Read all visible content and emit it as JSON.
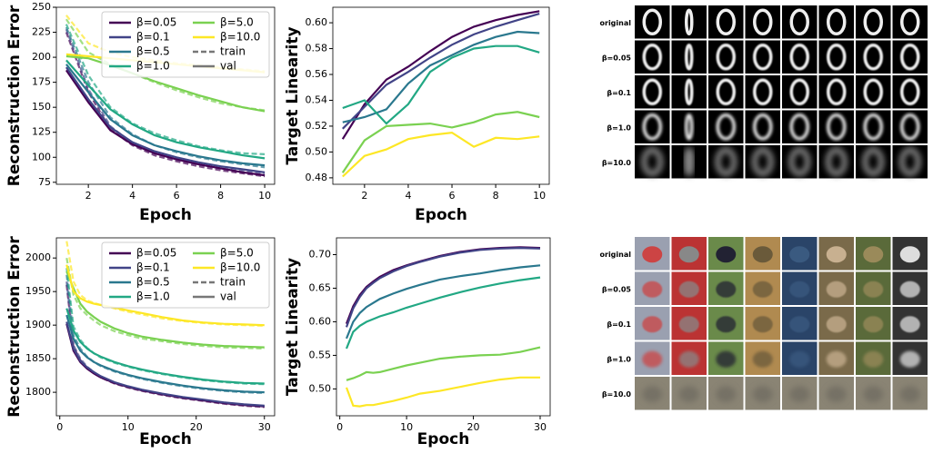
{
  "chart_data": [
    {
      "type": "line",
      "xlabel": "Epoch",
      "ylabel": "Reconstruction Error",
      "x": [
        1,
        2,
        3,
        4,
        5,
        6,
        7,
        8,
        9,
        10
      ],
      "xlim": [
        0.55,
        10.45
      ],
      "xticks": [
        2,
        4,
        6,
        8,
        10
      ],
      "ylim": [
        73,
        250
      ],
      "yticks": [
        75,
        100,
        125,
        150,
        175,
        200,
        225,
        250
      ],
      "legend": "upper right",
      "legend_styles": [
        "train",
        "val"
      ],
      "series": [
        {
          "name": "β=0.05",
          "color": "#440154",
          "values": [
            187,
            155,
            127,
            113,
            104,
            98,
            93,
            89,
            85,
            82
          ],
          "train_values": [
            225,
            165,
            128,
            112,
            102,
            96,
            91,
            87,
            84,
            81
          ]
        },
        {
          "name": "β=0.1",
          "color": "#414487",
          "values": [
            190,
            158,
            130,
            115,
            106,
            100,
            95,
            91,
            88,
            85
          ],
          "train_values": [
            228,
            168,
            131,
            114,
            104,
            98,
            93,
            89,
            86,
            84
          ]
        },
        {
          "name": "β=0.5",
          "color": "#2a788e",
          "values": [
            193,
            165,
            138,
            122,
            112,
            106,
            101,
            97,
            94,
            92
          ],
          "train_values": [
            230,
            175,
            140,
            123,
            112,
            105,
            100,
            96,
            93,
            90
          ]
        },
        {
          "name": "β=1.0",
          "color": "#22a884",
          "values": [
            197,
            172,
            148,
            133,
            122,
            115,
            110,
            106,
            102,
            99
          ],
          "train_values": [
            233,
            182,
            150,
            134,
            124,
            117,
            111,
            107,
            104,
            103
          ]
        },
        {
          "name": "β=5.0",
          "color": "#7ad151",
          "values": [
            201,
            199,
            192,
            184,
            176,
            169,
            162,
            156,
            150,
            146
          ],
          "train_values": [
            238,
            205,
            193,
            184,
            175,
            167,
            160,
            154,
            150,
            147
          ]
        },
        {
          "name": "β=10.0",
          "color": "#fde725",
          "values": [
            203,
            201,
            199,
            197,
            195,
            193,
            191,
            189,
            187,
            185
          ],
          "train_values": [
            242,
            214,
            205,
            200,
            197,
            194,
            192,
            190,
            188,
            186
          ]
        }
      ]
    },
    {
      "type": "line",
      "xlabel": "Epoch",
      "ylabel": "Target Linearity",
      "x": [
        1,
        2,
        3,
        4,
        5,
        6,
        7,
        8,
        9,
        10
      ],
      "xlim": [
        0.55,
        10.45
      ],
      "xticks": [
        2,
        4,
        6,
        8,
        10
      ],
      "ylim": [
        0.475,
        0.612
      ],
      "yticks": [
        0.48,
        {
          "value": 0.5,
          "label": "0.50"
        },
        0.52,
        0.54,
        0.56,
        0.58,
        {
          "value": 0.6,
          "label": "0.60"
        }
      ],
      "series": [
        {
          "name": "β=0.05",
          "color": "#440154",
          "values": [
            0.51,
            0.537,
            0.556,
            0.566,
            0.578,
            0.589,
            0.597,
            0.602,
            0.606,
            0.609
          ]
        },
        {
          "name": "β=0.1",
          "color": "#414487",
          "values": [
            0.518,
            0.535,
            0.552,
            0.562,
            0.573,
            0.583,
            0.591,
            0.597,
            0.602,
            0.607
          ]
        },
        {
          "name": "β=0.5",
          "color": "#2a788e",
          "values": [
            0.523,
            0.527,
            0.533,
            0.553,
            0.567,
            0.575,
            0.583,
            0.589,
            0.593,
            0.592
          ]
        },
        {
          "name": "β=1.0",
          "color": "#22a884",
          "values": [
            0.534,
            0.54,
            0.522,
            0.537,
            0.562,
            0.573,
            0.58,
            0.582,
            0.582,
            0.577
          ]
        },
        {
          "name": "β=5.0",
          "color": "#7ad151",
          "values": [
            0.484,
            0.509,
            0.52,
            0.521,
            0.522,
            0.519,
            0.523,
            0.529,
            0.531,
            0.527
          ]
        },
        {
          "name": "β=10.0",
          "color": "#fde725",
          "values": [
            0.481,
            0.497,
            0.502,
            0.51,
            0.513,
            0.515,
            0.504,
            0.511,
            0.51,
            0.512
          ]
        }
      ]
    },
    {
      "type": "line",
      "xlabel": "Epoch",
      "ylabel": "Reconstruction Error",
      "x": [
        1,
        2,
        3,
        4,
        5,
        6,
        8,
        10,
        12,
        15,
        18,
        21,
        24,
        27,
        30
      ],
      "xlim": [
        -0.5,
        31.5
      ],
      "xticks": [
        0,
        10,
        20,
        30
      ],
      "ylim": [
        1765,
        2030
      ],
      "yticks": [
        1800,
        1850,
        1900,
        1950,
        2000
      ],
      "legend": "upper right",
      "legend_styles": [
        "train",
        "val"
      ],
      "series": [
        {
          "name": "β=0.05",
          "color": "#440154",
          "values": [
            1902,
            1862,
            1845,
            1835,
            1828,
            1822,
            1814,
            1808,
            1803,
            1797,
            1792,
            1788,
            1784,
            1781,
            1779
          ],
          "train_values": [
            1960,
            1868,
            1848,
            1836,
            1828,
            1822,
            1813,
            1807,
            1802,
            1796,
            1791,
            1787,
            1783,
            1780,
            1778
          ]
        },
        {
          "name": "β=0.1",
          "color": "#414487",
          "values": [
            1905,
            1865,
            1847,
            1837,
            1830,
            1824,
            1815,
            1809,
            1804,
            1798,
            1793,
            1789,
            1785,
            1782,
            1780
          ],
          "train_values": [
            1965,
            1870,
            1850,
            1838,
            1830,
            1823,
            1814,
            1808,
            1803,
            1797,
            1792,
            1788,
            1784,
            1781,
            1779
          ]
        },
        {
          "name": "β=0.5",
          "color": "#2a788e",
          "values": [
            1915,
            1880,
            1862,
            1852,
            1845,
            1840,
            1832,
            1826,
            1821,
            1815,
            1810,
            1806,
            1803,
            1801,
            1800
          ],
          "train_values": [
            1975,
            1885,
            1865,
            1853,
            1845,
            1839,
            1831,
            1825,
            1820,
            1814,
            1809,
            1805,
            1802,
            1800,
            1799
          ]
        },
        {
          "name": "β=1.0",
          "color": "#22a884",
          "values": [
            1925,
            1892,
            1875,
            1865,
            1858,
            1853,
            1845,
            1839,
            1834,
            1828,
            1823,
            1819,
            1816,
            1814,
            1813
          ],
          "train_values": [
            1985,
            1898,
            1878,
            1866,
            1858,
            1852,
            1844,
            1838,
            1833,
            1827,
            1822,
            1818,
            1815,
            1813,
            1812
          ]
        },
        {
          "name": "β=5.0",
          "color": "#7ad151",
          "values": [
            1980,
            1955,
            1932,
            1920,
            1912,
            1905,
            1895,
            1888,
            1883,
            1878,
            1874,
            1871,
            1869,
            1868,
            1867
          ],
          "train_values": [
            2000,
            1945,
            1925,
            1915,
            1907,
            1900,
            1891,
            1885,
            1880,
            1876,
            1872,
            1869,
            1867,
            1866,
            1865
          ]
        },
        {
          "name": "β=10.0",
          "color": "#fde725",
          "values": [
            1990,
            1950,
            1940,
            1935,
            1932,
            1930,
            1926,
            1922,
            1918,
            1912,
            1907,
            1904,
            1902,
            1901,
            1900
          ],
          "train_values": [
            2025,
            1965,
            1945,
            1937,
            1933,
            1930,
            1925,
            1920,
            1916,
            1910,
            1906,
            1903,
            1901,
            1900,
            1899
          ]
        }
      ]
    },
    {
      "type": "line",
      "xlabel": "Epoch",
      "ylabel": "Target Linearity",
      "x": [
        1,
        2,
        3,
        4,
        5,
        6,
        8,
        10,
        12,
        15,
        18,
        21,
        24,
        27,
        30
      ],
      "xlim": [
        -0.5,
        31.5
      ],
      "xticks": [
        0,
        10,
        20,
        30
      ],
      "ylim": [
        0.46,
        0.725
      ],
      "yticks": [
        {
          "value": 0.5,
          "label": "0.50"
        },
        0.55,
        {
          "value": 0.6,
          "label": "0.60"
        },
        0.65,
        {
          "value": 0.7,
          "label": "0.70"
        }
      ],
      "series": [
        {
          "name": "β=0.05",
          "color": "#440154",
          "values": [
            0.597,
            0.623,
            0.64,
            0.652,
            0.66,
            0.667,
            0.677,
            0.684,
            0.69,
            0.698,
            0.704,
            0.708,
            0.71,
            0.711,
            0.71
          ]
        },
        {
          "name": "β=0.1",
          "color": "#414487",
          "values": [
            0.592,
            0.62,
            0.637,
            0.65,
            0.658,
            0.665,
            0.675,
            0.683,
            0.689,
            0.697,
            0.703,
            0.707,
            0.709,
            0.71,
            0.709
          ]
        },
        {
          "name": "β=0.5",
          "color": "#2a788e",
          "values": [
            0.575,
            0.6,
            0.613,
            0.622,
            0.628,
            0.634,
            0.642,
            0.649,
            0.655,
            0.663,
            0.668,
            0.672,
            0.677,
            0.681,
            0.684
          ]
        },
        {
          "name": "β=1.0",
          "color": "#22a884",
          "values": [
            0.56,
            0.585,
            0.594,
            0.6,
            0.604,
            0.608,
            0.614,
            0.621,
            0.627,
            0.636,
            0.644,
            0.651,
            0.657,
            0.662,
            0.666
          ]
        },
        {
          "name": "β=5.0",
          "color": "#7ad151",
          "values": [
            0.513,
            0.516,
            0.52,
            0.525,
            0.524,
            0.525,
            0.53,
            0.535,
            0.539,
            0.545,
            0.548,
            0.55,
            0.551,
            0.555,
            0.562
          ]
        },
        {
          "name": "β=10.0",
          "color": "#fde725",
          "values": [
            0.502,
            0.475,
            0.474,
            0.476,
            0.476,
            0.478,
            0.482,
            0.487,
            0.493,
            0.497,
            0.503,
            0.509,
            0.514,
            0.517,
            0.517
          ]
        }
      ]
    }
  ],
  "image_grids": [
    {
      "row_labels": [
        "original",
        "β=0.05",
        "β=0.1",
        "β=1.0",
        "β=10.0"
      ]
    },
    {
      "row_labels": [
        "original",
        "β=0.05",
        "β=0.1",
        "β=1.0",
        "β=10.0"
      ]
    }
  ]
}
